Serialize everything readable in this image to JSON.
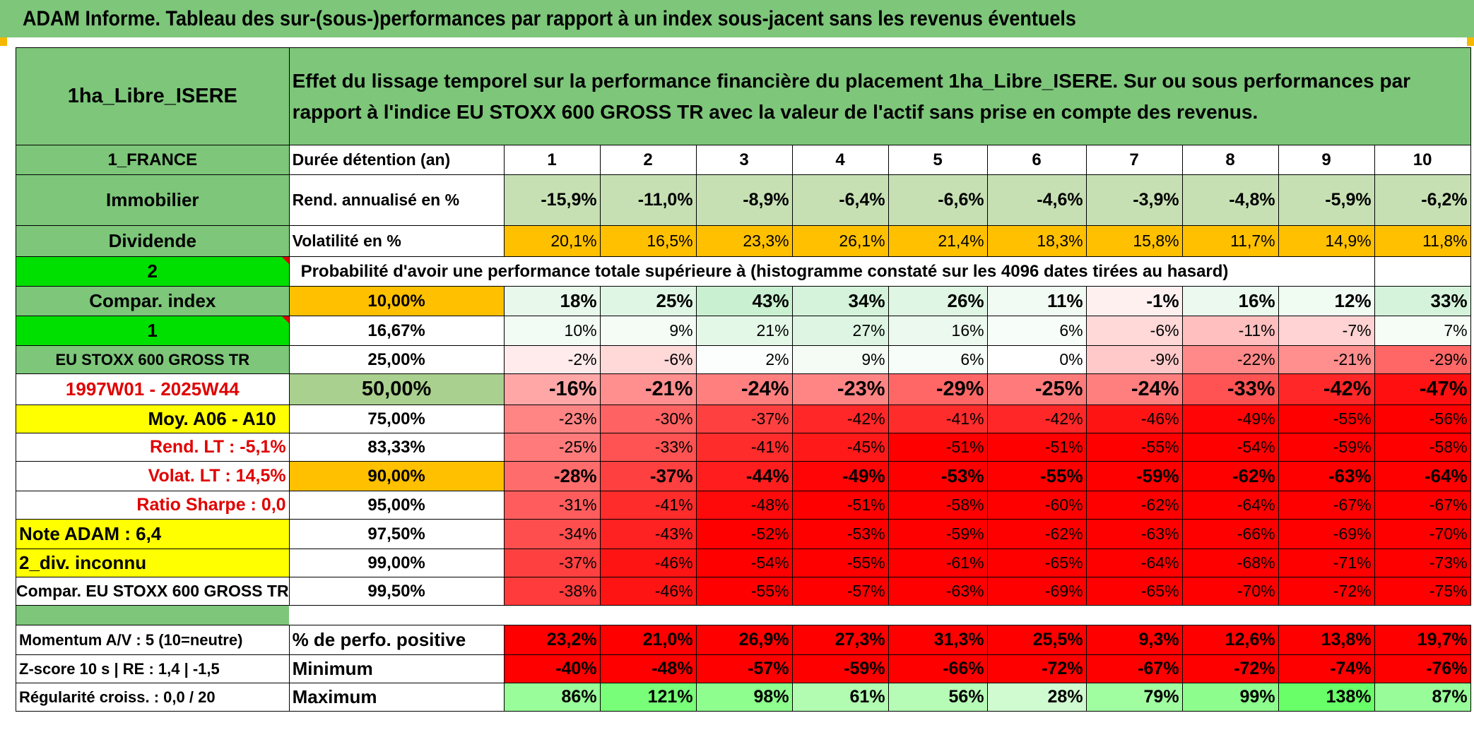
{
  "title": "ADAM Informe. Tableau des sur-(sous-)performances par rapport à un index sous-jacent sans les revenus éventuels",
  "fund_name": "1ha_Libre_ISERE",
  "description": "Effet du lissage temporel sur la performance financière du placement 1ha_Libre_ISERE. Sur ou sous performances par rapport à l'indice EU STOXX 600 GROSS TR avec la valeur de l'actif sans prise en compte des revenus.",
  "left": {
    "country": "1_FRANCE",
    "category": "Immobilier",
    "type": "Dividende",
    "index_num": "2",
    "compar_label": "Compar. index",
    "num1": "1",
    "index_name": "EU STOXX 600 GROSS TR",
    "period": "1997W01 - 2025W44",
    "moy": "Moy. A06 - A10",
    "rend_lt": "Rend. LT :    -5,1%",
    "volat_lt": "Volat. LT :    14,5%",
    "sharpe": "Ratio Sharpe :    0,0",
    "note": "Note ADAM : 6,4",
    "div": "2_div. inconnu",
    "compar_full": "Compar. EU STOXX 600 GROSS TR",
    "momentum": "Momentum A/V : 5 (10=neutre)",
    "zscore": "Z-score 10 s | RE : 1,4 | -1,5",
    "regularite": "Régularité croiss. : 0,0 / 20"
  },
  "headers": {
    "duree": "Durée détention (an)",
    "rend": "Rend. annualisé en %",
    "vol": "Volatilité en %",
    "prob": "Probabilité d'avoir une performance totale supérieure à (histogramme constaté sur les 4096 dates tirées au hasard)",
    "pos": "% de perfo. positive",
    "min": "Minimum",
    "max": "Maximum"
  },
  "years": [
    "1",
    "2",
    "3",
    "4",
    "5",
    "6",
    "7",
    "8",
    "9",
    "10"
  ],
  "rend": [
    "-15,9%",
    "-11,0%",
    "-8,9%",
    "-6,4%",
    "-6,6%",
    "-4,6%",
    "-3,9%",
    "-4,8%",
    "-5,9%",
    "-6,2%"
  ],
  "vol": [
    "20,1%",
    "16,5%",
    "23,3%",
    "26,1%",
    "21,4%",
    "18,3%",
    "15,8%",
    "11,7%",
    "14,9%",
    "11,8%"
  ],
  "pct_rows": [
    {
      "p": "10,00%",
      "v": [
        "18%",
        "25%",
        "43%",
        "34%",
        "26%",
        "11%",
        "-1%",
        "16%",
        "12%",
        "33%"
      ]
    },
    {
      "p": "16,67%",
      "v": [
        "10%",
        "9%",
        "21%",
        "27%",
        "16%",
        "6%",
        "-6%",
        "-11%",
        "-7%",
        "7%"
      ]
    },
    {
      "p": "25,00%",
      "v": [
        "-2%",
        "-6%",
        "2%",
        "9%",
        "6%",
        "0%",
        "-9%",
        "-22%",
        "-21%",
        "-29%"
      ]
    },
    {
      "p": "50,00%",
      "v": [
        "-16%",
        "-21%",
        "-24%",
        "-23%",
        "-29%",
        "-25%",
        "-24%",
        "-33%",
        "-42%",
        "-47%"
      ]
    },
    {
      "p": "75,00%",
      "v": [
        "-23%",
        "-30%",
        "-37%",
        "-42%",
        "-41%",
        "-42%",
        "-46%",
        "-49%",
        "-55%",
        "-56%"
      ]
    },
    {
      "p": "83,33%",
      "v": [
        "-25%",
        "-33%",
        "-41%",
        "-45%",
        "-51%",
        "-51%",
        "-55%",
        "-54%",
        "-59%",
        "-58%"
      ]
    },
    {
      "p": "90,00%",
      "v": [
        "-28%",
        "-37%",
        "-44%",
        "-49%",
        "-53%",
        "-55%",
        "-59%",
        "-62%",
        "-63%",
        "-64%"
      ]
    },
    {
      "p": "95,00%",
      "v": [
        "-31%",
        "-41%",
        "-48%",
        "-51%",
        "-58%",
        "-60%",
        "-62%",
        "-64%",
        "-67%",
        "-67%"
      ]
    },
    {
      "p": "97,50%",
      "v": [
        "-34%",
        "-43%",
        "-52%",
        "-53%",
        "-59%",
        "-62%",
        "-63%",
        "-66%",
        "-69%",
        "-70%"
      ]
    },
    {
      "p": "99,00%",
      "v": [
        "-37%",
        "-46%",
        "-54%",
        "-55%",
        "-61%",
        "-65%",
        "-64%",
        "-68%",
        "-71%",
        "-73%"
      ]
    },
    {
      "p": "99,50%",
      "v": [
        "-38%",
        "-46%",
        "-55%",
        "-57%",
        "-63%",
        "-69%",
        "-65%",
        "-70%",
        "-72%",
        "-75%"
      ]
    }
  ],
  "pos": [
    "23,2%",
    "21,0%",
    "26,9%",
    "27,3%",
    "31,3%",
    "25,5%",
    "9,3%",
    "12,6%",
    "13,8%",
    "19,7%"
  ],
  "min": [
    "-40%",
    "-48%",
    "-57%",
    "-59%",
    "-66%",
    "-72%",
    "-67%",
    "-72%",
    "-74%",
    "-76%"
  ],
  "max": [
    "86%",
    "121%",
    "98%",
    "61%",
    "56%",
    "28%",
    "79%",
    "99%",
    "138%",
    "87%"
  ],
  "colors": {
    "header_green": "#7dc67a",
    "light_green": "#a9d08e",
    "bright_green": "#00e000",
    "yellow": "#ffff00",
    "orange": "#ffc000",
    "red_text": "#e00000"
  }
}
